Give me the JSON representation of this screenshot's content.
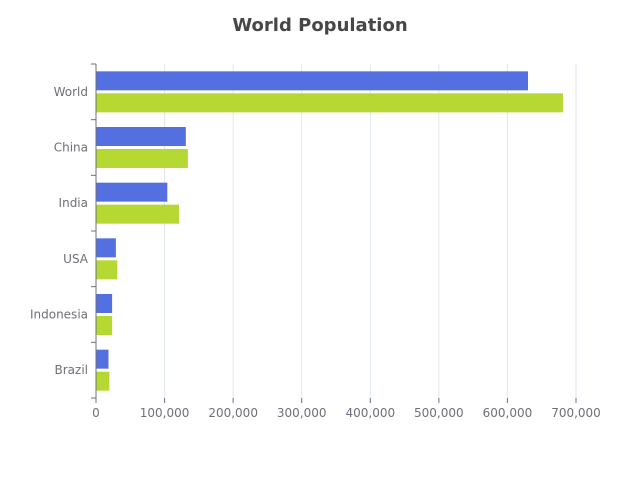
{
  "chart_data": {
    "type": "bar",
    "orientation": "horizontal",
    "title": "World Population",
    "categories": [
      "World",
      "China",
      "India",
      "USA",
      "Indonesia",
      "Brazil"
    ],
    "series": [
      {
        "values": [
          630000,
          131000,
          104000,
          29000,
          23500,
          18200
        ],
        "color": "#5470e0"
      },
      {
        "values": [
          681000,
          134000,
          121000,
          31000,
          23500,
          19500
        ],
        "color": "#b5d832"
      }
    ],
    "x_ticks": [
      "0",
      "100,000",
      "200,000",
      "300,000",
      "400,000",
      "500,000",
      "600,000",
      "700,000"
    ],
    "xlim": [
      0,
      700000
    ],
    "grid": true,
    "legend": "none"
  }
}
